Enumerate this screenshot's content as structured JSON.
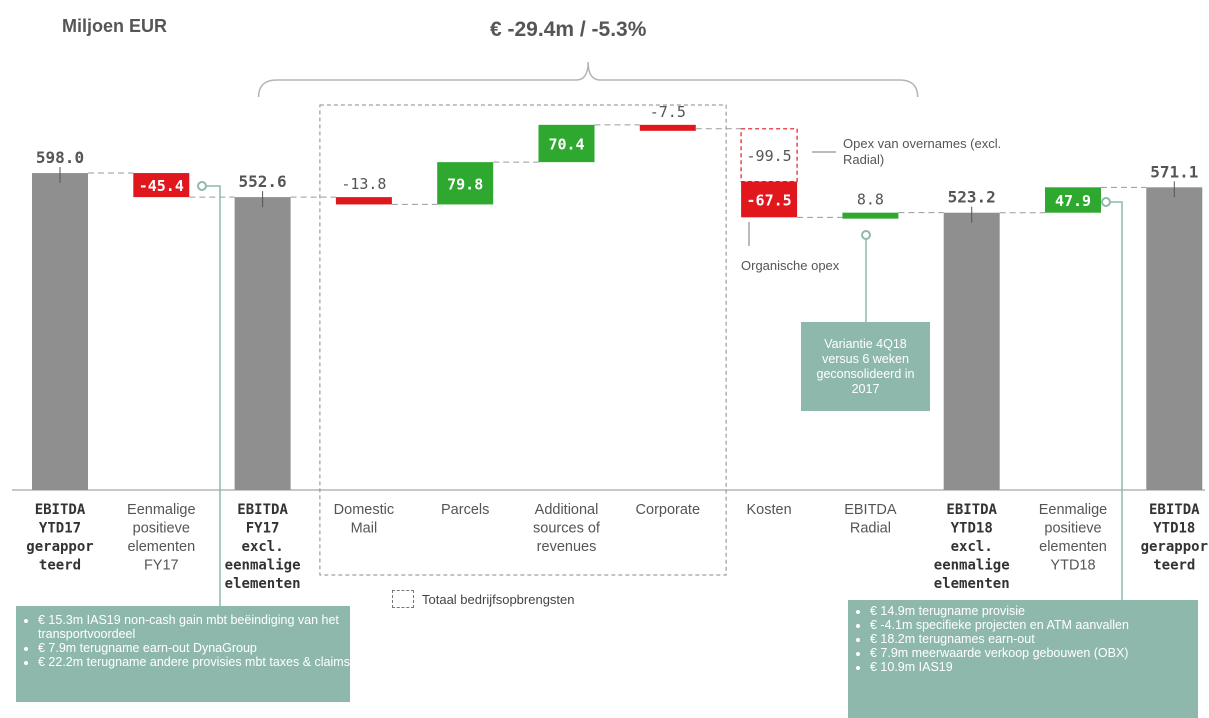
{
  "unit_label": "Miljoen EUR",
  "headline": "€ -29.4m / -5.3%",
  "colors": {
    "total": "#8f8f8f",
    "increase": "#2ea82e",
    "decrease": "#e0181e",
    "note": "#8fb8ad",
    "label": "#555555"
  },
  "chart_data": {
    "type": "bar",
    "subtype": "waterfall",
    "ylim": [
      0,
      700
    ],
    "categories": [
      "EBITDA YTD17 gerapporteerd",
      "Eenmalige positieve elementen FY17",
      "EBITDA FY17 excl. eenmalige elementen",
      "Domestic Mail",
      "Parcels",
      "Additional sources of revenues",
      "Corporate",
      "Kosten",
      "EBITDA Radial",
      "EBITDA YTD18 excl. eenmalige elementen",
      "Eenmalige positieve elementen YTD18",
      "EBITDA YTD18 gerapporteerd"
    ],
    "steps": [
      {
        "category": "EBITDA YTD17 gerapporteerd",
        "kind": "total",
        "value": 598.0,
        "label": "598.0",
        "tick_lines": [
          "EBITDA",
          "YTD17",
          "gerappor",
          "teerd"
        ],
        "bold": true
      },
      {
        "category": "Eenmalige positieve elementen FY17",
        "kind": "delta",
        "value": -45.4,
        "label": "-45.4",
        "tick_lines": [
          "Eenmalige",
          "positieve",
          "elementen",
          "FY17"
        ],
        "bold": false
      },
      {
        "category": "EBITDA FY17 excl. eenmalige elementen",
        "kind": "total",
        "value": 552.6,
        "label": "552.6",
        "tick_lines": [
          "EBITDA",
          "FY17",
          "excl.",
          "eenmalige",
          "elementen"
        ],
        "bold": true
      },
      {
        "category": "Domestic Mail",
        "kind": "delta",
        "value": -13.8,
        "label": "-13.8",
        "tick_lines": [
          "Domestic",
          "Mail"
        ],
        "bold": false
      },
      {
        "category": "Parcels",
        "kind": "delta",
        "value": 79.8,
        "label": "79.8",
        "tick_lines": [
          "Parcels"
        ],
        "bold": false
      },
      {
        "category": "Additional sources of revenues",
        "kind": "delta",
        "value": 70.4,
        "label": "70.4",
        "tick_lines": [
          "Additional",
          "sources of",
          "revenues"
        ],
        "bold": false
      },
      {
        "category": "Corporate",
        "kind": "delta",
        "value": -7.5,
        "label": "-7.5",
        "tick_lines": [
          "Corporate"
        ],
        "bold": false
      },
      {
        "category": "Kosten",
        "kind": "delta",
        "value": -167.0,
        "segments": [
          {
            "value": -99.5,
            "label": "-99.5",
            "style": "dashed"
          },
          {
            "value": -67.5,
            "label": "-67.5",
            "style": "solid"
          }
        ],
        "tick_lines": [
          "Kosten"
        ],
        "bold": false
      },
      {
        "category": "EBITDA Radial",
        "kind": "delta",
        "value": 8.8,
        "label": "8.8",
        "tick_lines": [
          "EBITDA",
          "Radial"
        ],
        "bold": false
      },
      {
        "category": "EBITDA YTD18 excl. eenmalige elementen",
        "kind": "total",
        "value": 523.2,
        "label": "523.2",
        "tick_lines": [
          "EBITDA",
          "YTD18",
          "excl.",
          "eenmalige",
          "elementen"
        ],
        "bold": true
      },
      {
        "category": "Eenmalige positieve elementen YTD18",
        "kind": "delta",
        "value": 47.9,
        "label": "47.9",
        "tick_lines": [
          "Eenmalige",
          "positieve",
          "elementen",
          "YTD18"
        ],
        "bold": false
      },
      {
        "category": "EBITDA YTD18 gerapporteerd",
        "kind": "total",
        "value": 571.1,
        "label": "571.1",
        "tick_lines": [
          "EBITDA",
          "YTD18",
          "gerappor",
          "teerd"
        ],
        "bold": true
      }
    ],
    "annotations": {
      "opex_acquisitions": "Opex van overnames (excl. Radial)",
      "opex_organic": "Organische opex"
    },
    "legend": {
      "label": "Totaal bedrijfsopbrengsten",
      "placement": "bottom-center"
    }
  },
  "callout": {
    "text": "Variantie 4Q18 versus 6 weken geconsolideerd in 2017"
  },
  "notes_left": [
    "€ 15.3m IAS19 non-cash gain mbt beëindiging van het transportvoordeel",
    "€ 7.9m terugname earn-out DynaGroup",
    "€ 22.2m terugname andere provisies mbt taxes & claims"
  ],
  "notes_right": [
    "€ 14.9m terugname provisie",
    "€ -4.1m specifieke projecten en ATM aanvallen",
    "€ 18.2m terugnames earn-out",
    "€ 7.9m meerwaarde verkoop gebouwen (OBX)",
    "€ 10.9m IAS19"
  ]
}
